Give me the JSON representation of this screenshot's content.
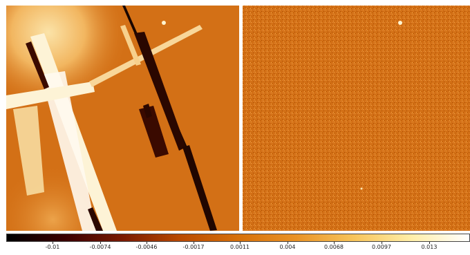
{
  "colors": {
    "colormap": [
      "#000000",
      "#3a0000",
      "#7a1a00",
      "#b94a00",
      "#d6700a",
      "#e99225",
      "#f7c45a",
      "#ffeea8",
      "#ffffff"
    ],
    "background_orange": "#d37016"
  },
  "colorbar": {
    "ticks": [
      "-0.01",
      "-0.0074",
      "-0.0046",
      "-0.0017",
      "0.0011",
      "0.004",
      "0.0068",
      "0.0097",
      "0.013"
    ]
  }
}
